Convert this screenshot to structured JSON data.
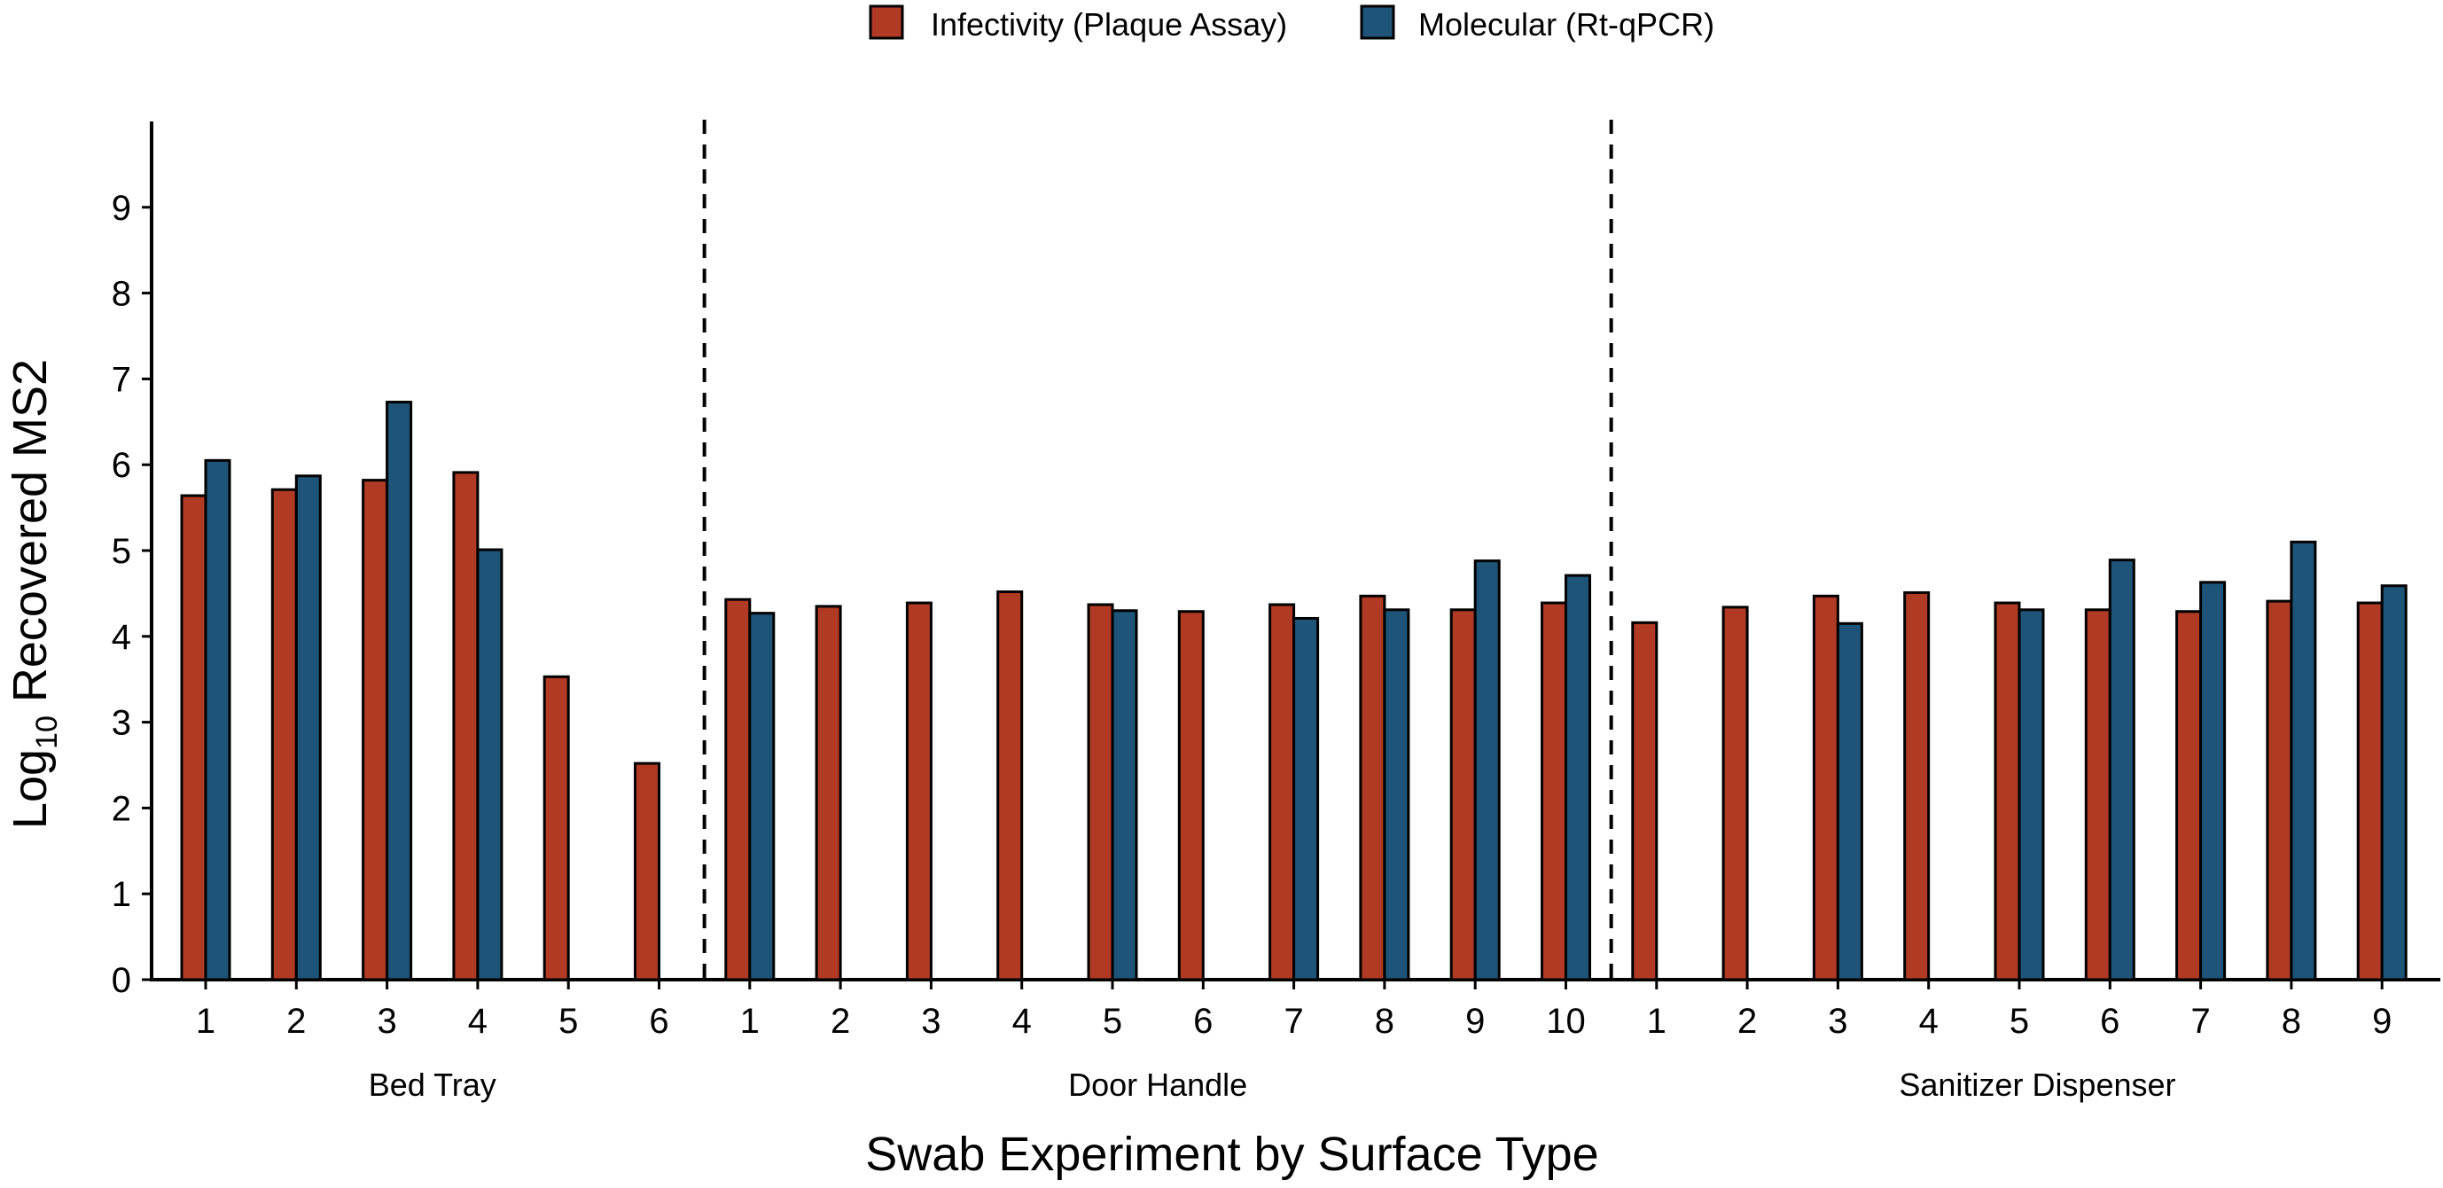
{
  "chart_data": {
    "type": "bar",
    "title": "",
    "xlabel": "Swab Experiment by Surface Type",
    "ylabel_main": "Log",
    "ylabel_sub": "10",
    "ylabel_rest": " Recovered MS2",
    "ylim": [
      0,
      10
    ],
    "yticks": [
      0,
      1,
      2,
      3,
      4,
      5,
      6,
      7,
      8,
      9
    ],
    "legend_position": "top-center",
    "series": [
      {
        "name": "Infectivity (Plaque Assay)",
        "color": "#B03A23"
      },
      {
        "name": "Molecular (Rt-qPCR)",
        "color": "#1E5478"
      }
    ],
    "groups": [
      {
        "label": "Bed Tray",
        "experiments": [
          "1",
          "2",
          "3",
          "4",
          "5",
          "6"
        ],
        "infectivity": [
          5.64,
          5.71,
          5.82,
          5.91,
          3.53,
          2.52
        ],
        "molecular": [
          6.05,
          5.87,
          6.73,
          5.01,
          null,
          null
        ]
      },
      {
        "label": "Door Handle",
        "experiments": [
          "1",
          "2",
          "3",
          "4",
          "5",
          "6",
          "7",
          "8",
          "9",
          "10"
        ],
        "infectivity": [
          4.43,
          4.35,
          4.39,
          4.52,
          4.37,
          4.29,
          4.37,
          4.47,
          4.31,
          4.39
        ],
        "molecular": [
          4.27,
          null,
          null,
          null,
          4.3,
          null,
          4.21,
          4.31,
          4.88,
          4.71
        ]
      },
      {
        "label": "Sanitizer Dispenser",
        "experiments": [
          "1",
          "2",
          "3",
          "4",
          "5",
          "6",
          "7",
          "8",
          "9"
        ],
        "infectivity": [
          4.16,
          4.34,
          4.47,
          4.51,
          4.39,
          4.31,
          4.29,
          4.41,
          4.39
        ],
        "molecular": [
          null,
          null,
          4.15,
          null,
          4.31,
          4.89,
          4.63,
          5.1,
          4.59
        ]
      }
    ]
  }
}
